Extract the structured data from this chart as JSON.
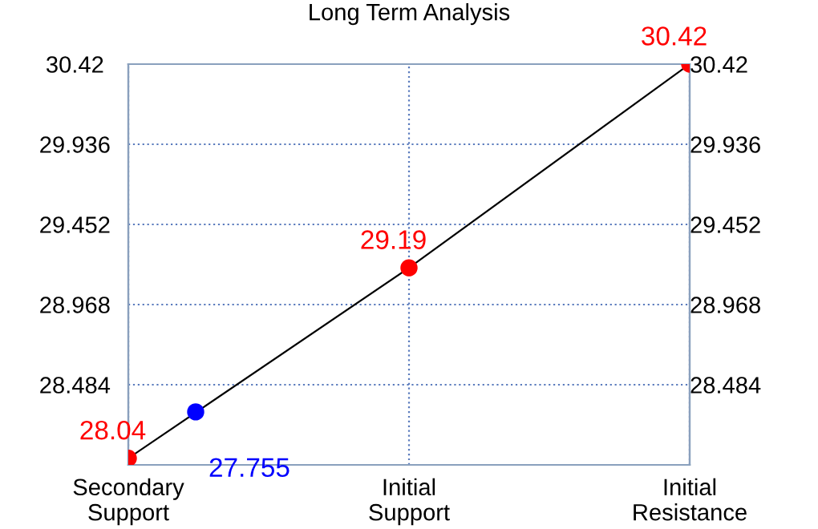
{
  "chart_data": {
    "type": "line",
    "title": "Long Term Analysis",
    "categories": [
      "Secondary\nSupport",
      "Initial\nSupport",
      "Initial\nResistance"
    ],
    "ylim": [
      28.0,
      30.42
    ],
    "yticks": [
      28.484,
      28.968,
      29.452,
      29.936,
      30.42
    ],
    "y2lim": [
      28.0,
      30.42
    ],
    "y2ticks": [
      28.484,
      28.968,
      29.452,
      29.936,
      30.42
    ],
    "grid": true,
    "series": [
      {
        "color": "#000000",
        "values": [
          28.04,
          29.19,
          30.42
        ]
      },
      {
        "type": "scatter",
        "color": "#ff0000",
        "values": [
          28.04,
          29.19,
          30.42
        ],
        "marker": "circle",
        "data_labels": true
      },
      {
        "type": "scatter",
        "color": "#0000ff",
        "values": [
          28.32,
          null,
          null
        ],
        "marker": "circle"
      }
    ],
    "annotations": [
      "27.755"
    ]
  }
}
